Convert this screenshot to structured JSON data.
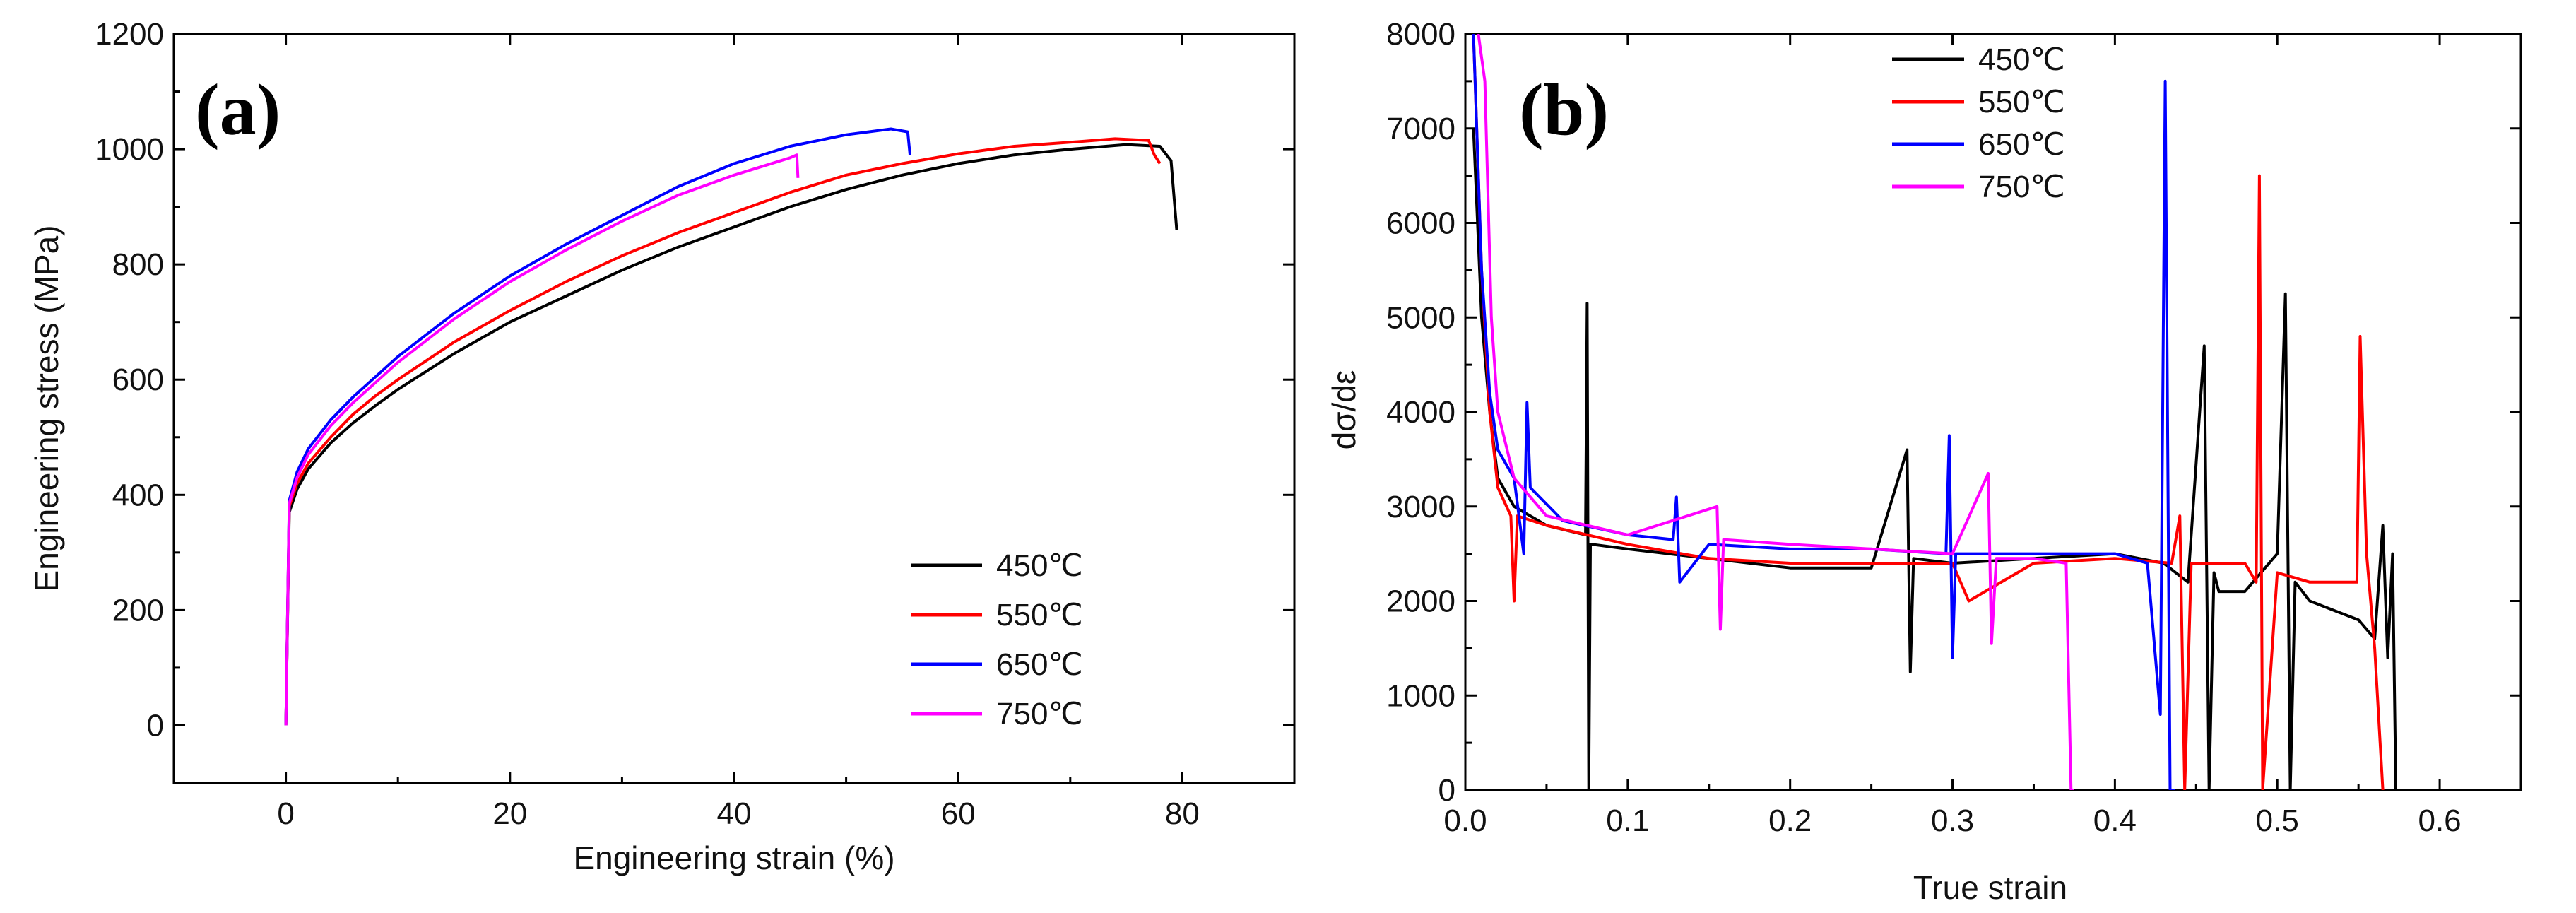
{
  "chart_data": [
    {
      "type": "line",
      "panel_label": "(a)",
      "xlabel": "Engineering strain (%)",
      "ylabel": "Engineering stress (MPa)",
      "xlim": [
        -10,
        90
      ],
      "ylim": [
        -100,
        1200
      ],
      "xticks": [
        0,
        20,
        40,
        60,
        80
      ],
      "yticks": [
        0,
        200,
        400,
        600,
        800,
        1000,
        1200
      ],
      "legend_position": "bottom-right",
      "series": [
        {
          "name": "450℃",
          "color": "#000000",
          "x": [
            0,
            0.3,
            1,
            2,
            4,
            6,
            8,
            10,
            15,
            20,
            25,
            30,
            35,
            40,
            45,
            50,
            55,
            60,
            65,
            70,
            75,
            78,
            79,
            79.5
          ],
          "y": [
            0,
            370,
            410,
            445,
            490,
            525,
            555,
            583,
            645,
            700,
            745,
            790,
            830,
            865,
            900,
            930,
            955,
            975,
            990,
            1000,
            1008,
            1005,
            980,
            860
          ]
        },
        {
          "name": "550℃",
          "color": "#ff0000",
          "x": [
            0,
            0.3,
            1,
            2,
            4,
            6,
            8,
            10,
            15,
            20,
            25,
            30,
            35,
            40,
            45,
            50,
            55,
            60,
            65,
            70,
            74,
            77,
            77.5,
            78
          ],
          "y": [
            0,
            380,
            420,
            455,
            500,
            540,
            572,
            600,
            665,
            720,
            770,
            815,
            855,
            890,
            925,
            955,
            975,
            992,
            1005,
            1012,
            1018,
            1015,
            990,
            975
          ]
        },
        {
          "name": "650℃",
          "color": "#0000ff",
          "x": [
            0,
            0.3,
            1,
            2,
            4,
            6,
            8,
            10,
            15,
            20,
            25,
            30,
            35,
            40,
            45,
            50,
            54,
            55.5,
            55.7
          ],
          "y": [
            0,
            390,
            440,
            480,
            530,
            570,
            605,
            640,
            715,
            780,
            835,
            885,
            935,
            975,
            1005,
            1025,
            1035,
            1030,
            990
          ]
        },
        {
          "name": "750℃",
          "color": "#ff00ff",
          "x": [
            0,
            0.3,
            1,
            2,
            4,
            6,
            8,
            10,
            15,
            20,
            25,
            30,
            35,
            40,
            45,
            45.6,
            45.7
          ],
          "y": [
            0,
            385,
            430,
            470,
            520,
            560,
            595,
            630,
            705,
            770,
            825,
            875,
            920,
            955,
            985,
            990,
            950
          ]
        }
      ]
    },
    {
      "type": "line",
      "panel_label": "(b)",
      "xlabel": "True strain",
      "ylabel": "dσ/dε",
      "xlim": [
        0,
        0.65
      ],
      "ylim": [
        0,
        8000
      ],
      "xticks": [
        "0.0",
        "0.1",
        "0.2",
        "0.3",
        "0.4",
        "0.5",
        "0.6"
      ],
      "yticks": [
        0,
        1000,
        2000,
        3000,
        4000,
        5000,
        6000,
        7000,
        8000
      ],
      "legend_position": "top-center",
      "series": [
        {
          "name": "450℃",
          "color": "#000000",
          "x": [
            0.005,
            0.01,
            0.015,
            0.02,
            0.03,
            0.05,
            0.074,
            0.075,
            0.076,
            0.077,
            0.078,
            0.1,
            0.15,
            0.2,
            0.25,
            0.272,
            0.274,
            0.276,
            0.3,
            0.35,
            0.4,
            0.43,
            0.445,
            0.455,
            0.458,
            0.461,
            0.464,
            0.48,
            0.5,
            0.505,
            0.508,
            0.511,
            0.52,
            0.55,
            0.56,
            0.565,
            0.568,
            0.571,
            0.573
          ],
          "y": [
            7000,
            5000,
            4000,
            3300,
            3000,
            2800,
            2700,
            5150,
            0,
            2600,
            2600,
            2550,
            2450,
            2350,
            2350,
            3600,
            1250,
            2450,
            2400,
            2450,
            2500,
            2400,
            2200,
            4700,
            0,
            2300,
            2100,
            2100,
            2500,
            5250,
            0,
            2200,
            2000,
            1800,
            1600,
            2800,
            1400,
            2500,
            0
          ]
        },
        {
          "name": "550℃",
          "color": "#ff0000",
          "x": [
            0.005,
            0.01,
            0.015,
            0.02,
            0.028,
            0.03,
            0.032,
            0.05,
            0.1,
            0.15,
            0.2,
            0.25,
            0.3,
            0.31,
            0.35,
            0.4,
            0.435,
            0.44,
            0.443,
            0.447,
            0.46,
            0.48,
            0.487,
            0.489,
            0.491,
            0.5,
            0.52,
            0.54,
            0.549,
            0.551,
            0.555,
            0.56,
            0.565
          ],
          "y": [
            8000,
            5500,
            4000,
            3200,
            2900,
            2000,
            2900,
            2800,
            2600,
            2450,
            2400,
            2400,
            2400,
            2000,
            2400,
            2450,
            2400,
            2900,
            0,
            2400,
            2400,
            2400,
            2200,
            6500,
            0,
            2300,
            2200,
            2200,
            2200,
            4800,
            2500,
            1500,
            0
          ]
        },
        {
          "name": "650℃",
          "color": "#0000ff",
          "x": [
            0.005,
            0.01,
            0.015,
            0.02,
            0.03,
            0.036,
            0.038,
            0.04,
            0.06,
            0.1,
            0.128,
            0.13,
            0.132,
            0.15,
            0.2,
            0.25,
            0.296,
            0.298,
            0.3,
            0.302,
            0.35,
            0.4,
            0.42,
            0.428,
            0.431,
            0.434,
            0.437
          ],
          "y": [
            8000,
            5500,
            4200,
            3600,
            3300,
            2500,
            4100,
            3200,
            2850,
            2700,
            2650,
            3100,
            2200,
            2600,
            2550,
            2550,
            2500,
            3750,
            1400,
            2500,
            2500,
            2500,
            2400,
            800,
            7500,
            0,
            0
          ]
        },
        {
          "name": "750℃",
          "color": "#ff00ff",
          "x": [
            0.008,
            0.012,
            0.016,
            0.02,
            0.03,
            0.05,
            0.1,
            0.155,
            0.157,
            0.159,
            0.2,
            0.25,
            0.3,
            0.322,
            0.324,
            0.327,
            0.35,
            0.37,
            0.373,
            0.375
          ],
          "y": [
            8000,
            7500,
            5000,
            4000,
            3300,
            2900,
            2700,
            3000,
            1700,
            2650,
            2600,
            2550,
            2500,
            3350,
            1550,
            2450,
            2450,
            2400,
            0,
            0
          ]
        }
      ]
    }
  ]
}
